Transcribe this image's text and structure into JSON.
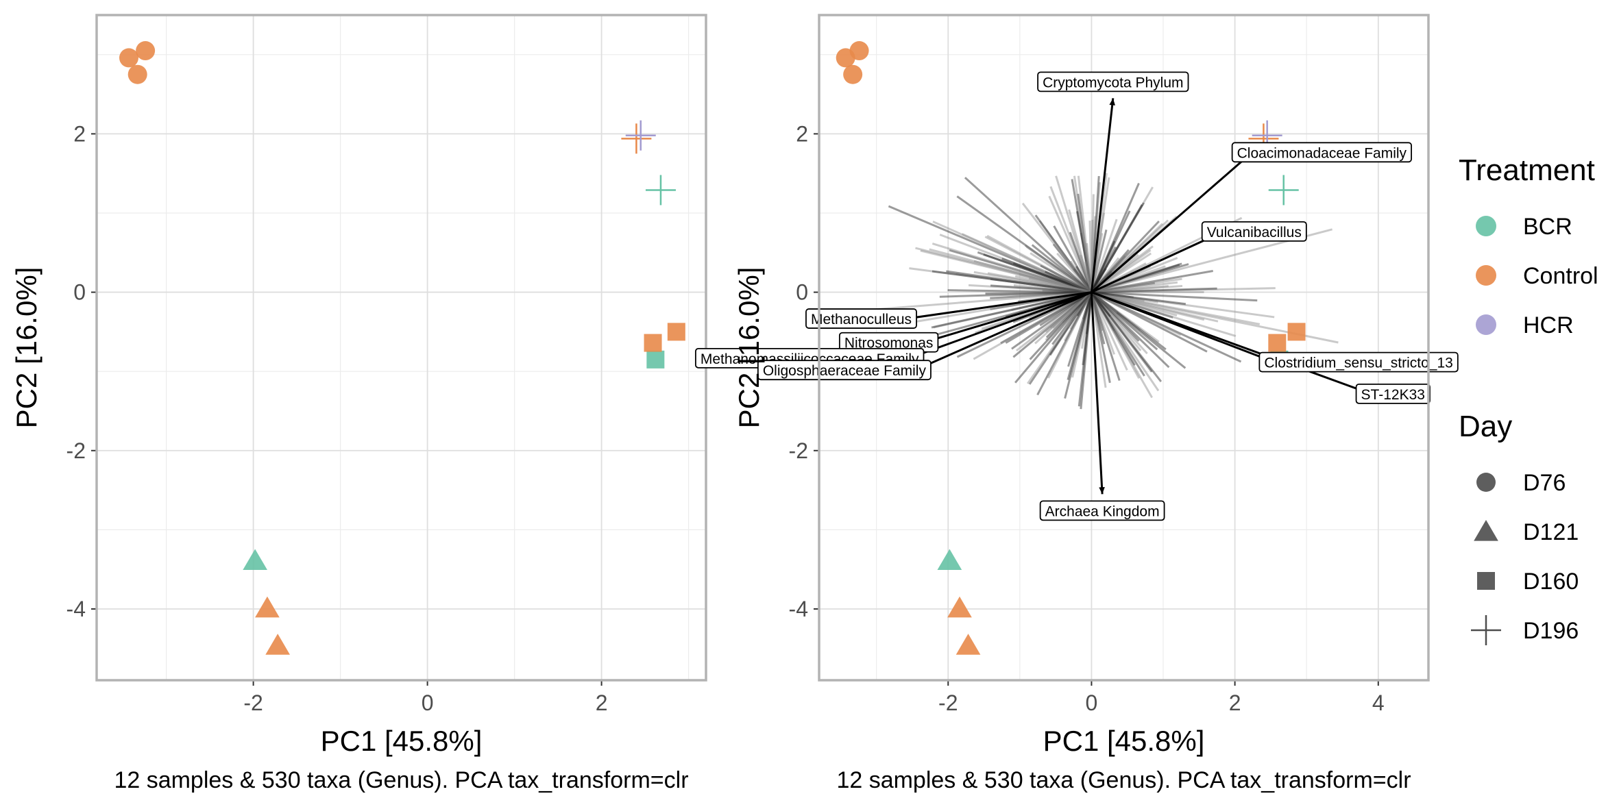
{
  "chart_data": [
    {
      "type": "scatter",
      "xlabel": "PC1 [45.8%]",
      "ylabel": "PC2 [16.0%]",
      "caption": "12 samples & 530 taxa (Genus). PCA tax_transform=clr",
      "xlim": [
        -3.8,
        3.2
      ],
      "ylim": [
        -4.9,
        3.5
      ],
      "xticks": [
        -2,
        0,
        2
      ],
      "yticks": [
        -4,
        -2,
        0,
        2
      ],
      "grid": true,
      "points": [
        {
          "x": -3.43,
          "y": 2.96,
          "treatment": "Control",
          "day": "D76"
        },
        {
          "x": -3.24,
          "y": 3.05,
          "treatment": "Control",
          "day": "D76"
        },
        {
          "x": -3.33,
          "y": 2.75,
          "treatment": "Control",
          "day": "D76"
        },
        {
          "x": -1.98,
          "y": -3.39,
          "treatment": "BCR",
          "day": "D121"
        },
        {
          "x": -1.84,
          "y": -3.99,
          "treatment": "Control",
          "day": "D121"
        },
        {
          "x": -1.72,
          "y": -4.46,
          "treatment": "Control",
          "day": "D121"
        },
        {
          "x": 2.62,
          "y": -0.85,
          "treatment": "BCR",
          "day": "D160"
        },
        {
          "x": 2.59,
          "y": -0.64,
          "treatment": "Control",
          "day": "D160"
        },
        {
          "x": 2.86,
          "y": -0.5,
          "treatment": "Control",
          "day": "D160"
        },
        {
          "x": 2.4,
          "y": 1.94,
          "treatment": "Control",
          "day": "D196"
        },
        {
          "x": 2.45,
          "y": 1.98,
          "treatment": "HCR",
          "day": "D196"
        },
        {
          "x": 2.68,
          "y": 1.29,
          "treatment": "BCR",
          "day": "D196"
        }
      ]
    },
    {
      "type": "scatter",
      "xlabel": "PC1 [45.8%]",
      "ylabel": "PC2 [16.0%]",
      "caption": "12 samples & 530 taxa (Genus). PCA tax_transform=clr",
      "xlim": [
        -3.8,
        4.7
      ],
      "ylim": [
        -4.9,
        3.5
      ],
      "xticks": [
        -2,
        0,
        2,
        4
      ],
      "yticks": [
        -4,
        -2,
        0,
        2
      ],
      "grid": true,
      "points": [
        {
          "x": -3.43,
          "y": 2.96,
          "treatment": "Control",
          "day": "D76"
        },
        {
          "x": -3.24,
          "y": 3.05,
          "treatment": "Control",
          "day": "D76"
        },
        {
          "x": -3.33,
          "y": 2.75,
          "treatment": "Control",
          "day": "D76"
        },
        {
          "x": -1.98,
          "y": -3.39,
          "treatment": "BCR",
          "day": "D121"
        },
        {
          "x": -1.84,
          "y": -3.99,
          "treatment": "Control",
          "day": "D121"
        },
        {
          "x": -1.72,
          "y": -4.46,
          "treatment": "Control",
          "day": "D121"
        },
        {
          "x": 2.62,
          "y": -0.85,
          "treatment": "BCR",
          "day": "D160"
        },
        {
          "x": 2.59,
          "y": -0.64,
          "treatment": "Control",
          "day": "D160"
        },
        {
          "x": 2.86,
          "y": -0.5,
          "treatment": "Control",
          "day": "D160"
        },
        {
          "x": 2.4,
          "y": 1.94,
          "treatment": "Control",
          "day": "D196"
        },
        {
          "x": 2.45,
          "y": 1.98,
          "treatment": "HCR",
          "day": "D196"
        },
        {
          "x": 2.68,
          "y": 1.29,
          "treatment": "BCR",
          "day": "D196"
        }
      ],
      "loadings": [
        {
          "label": "Cryptomycota Phylum",
          "x": 0.3,
          "y": 2.45
        },
        {
          "label": "Cloacimonadaceae Family",
          "x": 2.22,
          "y": 1.75
        },
        {
          "label": "Vulcanibacillus",
          "x": 1.8,
          "y": 0.75
        },
        {
          "label": "Methanoculleus",
          "x": -2.7,
          "y": -0.35
        },
        {
          "label": "Nitrosomonas",
          "x": -2.4,
          "y": -0.65
        },
        {
          "label": "Methanomassiliicoccaceae Family",
          "x": -2.6,
          "y": -0.85
        },
        {
          "label": "Oligosphaeraceae Family",
          "x": -2.5,
          "y": -1.0
        },
        {
          "label": "Clostridium_sensu_stricto_13",
          "x": 2.6,
          "y": -0.9
        },
        {
          "label": "ST-12K33",
          "x": 3.95,
          "y": -1.3
        },
        {
          "label": "Archaea Kingdom",
          "x": 0.15,
          "y": -2.55
        }
      ]
    }
  ],
  "legend": {
    "treatment": {
      "title": "Treatment",
      "items": [
        {
          "label": "BCR",
          "color": "#66c2a5"
        },
        {
          "label": "Control",
          "color": "#e8894a"
        },
        {
          "label": "HCR",
          "color": "#a39bd0"
        }
      ]
    },
    "day": {
      "title": "Day",
      "items": [
        {
          "label": "D76",
          "shape": "circle"
        },
        {
          "label": "D121",
          "shape": "triangle"
        },
        {
          "label": "D160",
          "shape": "square"
        },
        {
          "label": "D196",
          "shape": "plus"
        }
      ]
    }
  }
}
